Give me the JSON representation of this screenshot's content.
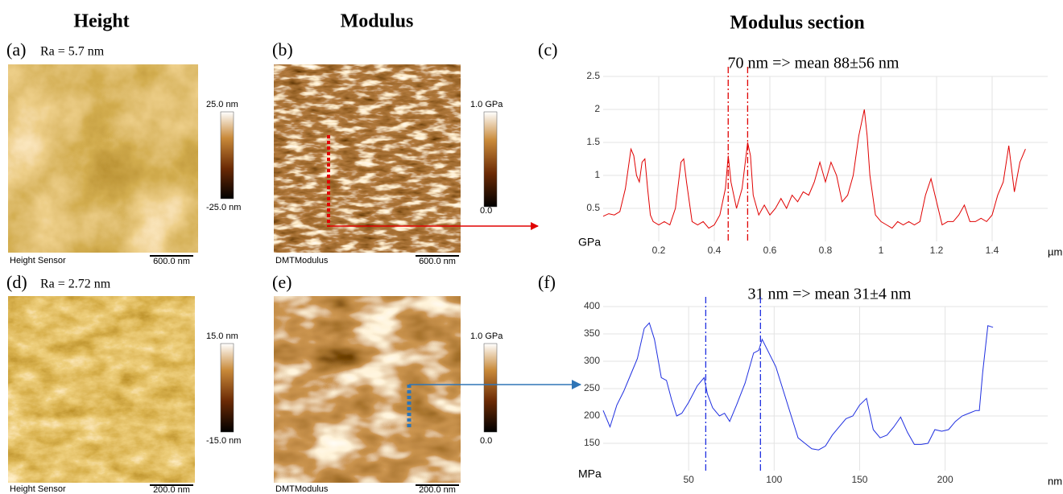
{
  "headers": [
    "Height",
    "Modulus",
    "Modulus section"
  ],
  "images": [
    {
      "label": "(a)",
      "note": "Ra = 5.7 nm",
      "caption": "Height Sensor",
      "scale": "600.0 nm",
      "cbar_top": "25.0 nm",
      "cbar_bottom": "-25.0 nm"
    },
    {
      "label": "(b)",
      "caption": "DMTModulus",
      "scale": "600.0 nm",
      "cbar_top": "1.0 GPa",
      "cbar_bottom": "0.0"
    },
    {
      "label": "(d)",
      "note": "Ra = 2.72 nm",
      "caption": "Height Sensor",
      "scale": "200.0 nm",
      "cbar_top": "15.0 nm",
      "cbar_bottom": "-15.0 nm"
    },
    {
      "label": "(e)",
      "caption": "DMTModulus",
      "scale": "200.0 nm",
      "cbar_top": "1.0 GPa",
      "cbar_bottom": "0.0"
    }
  ],
  "chart_data": [
    {
      "type": "line",
      "label": "(c)",
      "title": "70 nm  => mean 88±56 nm",
      "y_label": "GPa",
      "x_label": "µm",
      "x": [
        0,
        0.02,
        0.04,
        0.06,
        0.08,
        0.1,
        0.11,
        0.12,
        0.13,
        0.14,
        0.15,
        0.16,
        0.17,
        0.18,
        0.2,
        0.22,
        0.24,
        0.26,
        0.28,
        0.29,
        0.3,
        0.32,
        0.34,
        0.36,
        0.38,
        0.4,
        0.42,
        0.44,
        0.45,
        0.46,
        0.48,
        0.5,
        0.52,
        0.53,
        0.54,
        0.56,
        0.58,
        0.6,
        0.62,
        0.64,
        0.66,
        0.68,
        0.7,
        0.72,
        0.74,
        0.76,
        0.78,
        0.8,
        0.82,
        0.84,
        0.86,
        0.88,
        0.9,
        0.92,
        0.94,
        0.95,
        0.96,
        0.98,
        1.0,
        1.02,
        1.04,
        1.06,
        1.08,
        1.1,
        1.12,
        1.14,
        1.16,
        1.18,
        1.2,
        1.22,
        1.24,
        1.26,
        1.28,
        1.3,
        1.32,
        1.34,
        1.36,
        1.38,
        1.4,
        1.42,
        1.44,
        1.46,
        1.48,
        1.5,
        1.52
      ],
      "series": [
        {
          "color": "#e00000",
          "values": [
            0.38,
            0.42,
            0.4,
            0.45,
            0.8,
            1.4,
            1.3,
            1.0,
            0.9,
            1.2,
            1.25,
            0.8,
            0.4,
            0.3,
            0.25,
            0.3,
            0.25,
            0.5,
            1.2,
            1.25,
            0.9,
            0.3,
            0.25,
            0.3,
            0.2,
            0.25,
            0.4,
            0.8,
            1.3,
            0.9,
            0.5,
            0.8,
            1.5,
            1.3,
            0.7,
            0.4,
            0.55,
            0.4,
            0.5,
            0.65,
            0.5,
            0.7,
            0.6,
            0.75,
            0.7,
            0.9,
            1.2,
            0.9,
            1.2,
            1.0,
            0.6,
            0.7,
            1.0,
            1.6,
            2.0,
            1.6,
            1.0,
            0.4,
            0.3,
            0.25,
            0.2,
            0.3,
            0.25,
            0.3,
            0.25,
            0.3,
            0.7,
            0.95,
            0.6,
            0.25,
            0.3,
            0.3,
            0.4,
            0.55,
            0.3,
            0.3,
            0.35,
            0.3,
            0.4,
            0.7,
            0.9,
            1.45,
            0.75,
            1.2,
            1.4
          ]
        }
      ],
      "vlines": [
        0.45,
        0.52
      ],
      "xlim": [
        0,
        1.6
      ],
      "ylim": [
        0,
        2.5
      ],
      "xticks": [
        0.2,
        0.4,
        0.6,
        0.8,
        1,
        1.2,
        1.4
      ],
      "yticks": [
        0.5,
        1,
        1.5,
        2,
        2.5
      ],
      "grid": true
    },
    {
      "type": "line",
      "label": "(f)",
      "title": "31 nm => mean 31±4 nm",
      "y_label": "MPa",
      "x_label": "nm",
      "x": [
        0,
        4,
        8,
        12,
        16,
        20,
        24,
        27,
        30,
        34,
        37,
        40,
        43,
        46,
        50,
        55,
        59,
        61,
        64,
        68,
        71,
        74,
        78,
        83,
        88,
        91,
        93,
        97,
        101,
        105,
        110,
        114,
        118,
        122,
        126,
        130,
        134,
        138,
        142,
        146,
        150,
        154,
        158,
        162,
        166,
        170,
        174,
        178,
        182,
        186,
        190,
        194,
        198,
        202,
        206,
        210,
        214,
        218,
        220,
        222,
        225,
        228
      ],
      "series": [
        {
          "color": "#1f2fe0",
          "values": [
            210,
            180,
            220,
            245,
            275,
            305,
            360,
            370,
            340,
            270,
            265,
            230,
            200,
            205,
            225,
            255,
            270,
            240,
            215,
            200,
            205,
            190,
            220,
            260,
            315,
            320,
            340,
            315,
            290,
            250,
            200,
            160,
            150,
            140,
            138,
            145,
            165,
            180,
            195,
            200,
            220,
            232,
            175,
            160,
            165,
            180,
            198,
            170,
            148,
            148,
            150,
            175,
            172,
            175,
            190,
            200,
            205,
            210,
            210,
            280,
            365,
            362
          ]
        }
      ],
      "vlines": [
        60,
        92
      ],
      "xlim": [
        0,
        260
      ],
      "ylim": [
        100,
        400
      ],
      "xticks": [
        50,
        100,
        150,
        200
      ],
      "yticks": [
        150,
        200,
        250,
        300,
        350,
        400
      ],
      "grid": true
    }
  ]
}
